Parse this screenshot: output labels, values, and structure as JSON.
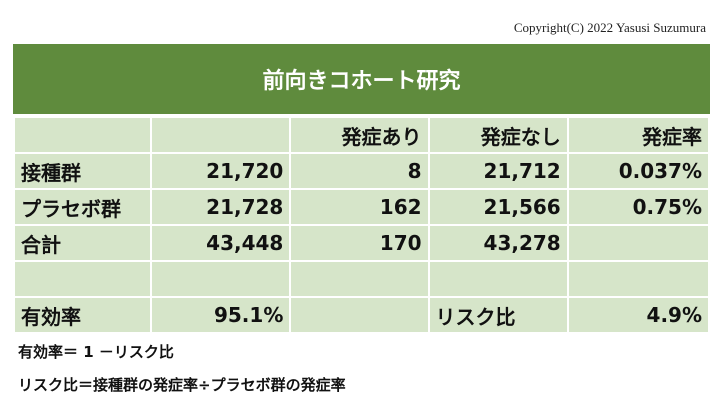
{
  "copyright": "Copyright(C) 2022 Yasusi Suzumura",
  "title": "前向きコホート研究",
  "header": [
    "",
    "",
    "発症あり",
    "発症なし",
    "発症率"
  ],
  "rows": [
    [
      "接種群",
      "21,720",
      "8",
      "21,712",
      "0.037%"
    ],
    [
      "プラセボ群",
      "21,728",
      "162",
      "21,566",
      "0.75%"
    ],
    [
      "合計",
      "43,448",
      "170",
      "43,278",
      ""
    ],
    [
      "",
      "",
      "",
      "",
      ""
    ],
    [
      "有効率",
      "95.1%",
      "",
      "リスク比",
      "4.9%"
    ]
  ],
  "notes": [
    "有効率＝ 1 －リスク比",
    "リスク比＝接種群の発症率÷プラセボ群の発症率"
  ],
  "colors": {
    "banner": "#5f8b3d",
    "cell": "#d6e5c9"
  }
}
